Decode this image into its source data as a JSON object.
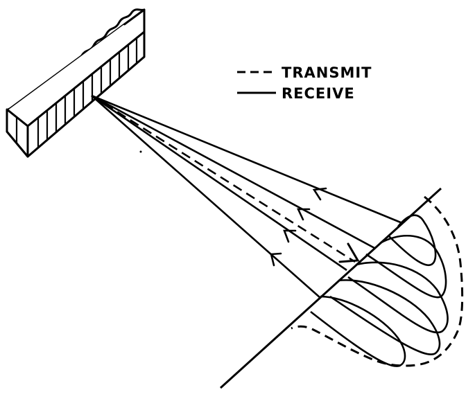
{
  "legend": {
    "transmit_label": "TRANSMIT",
    "receive_label": "RECEIVE"
  },
  "colors": {
    "ink": "#000000",
    "background": "#ffffff"
  },
  "icons": {
    "array": "antenna-array-icon"
  }
}
